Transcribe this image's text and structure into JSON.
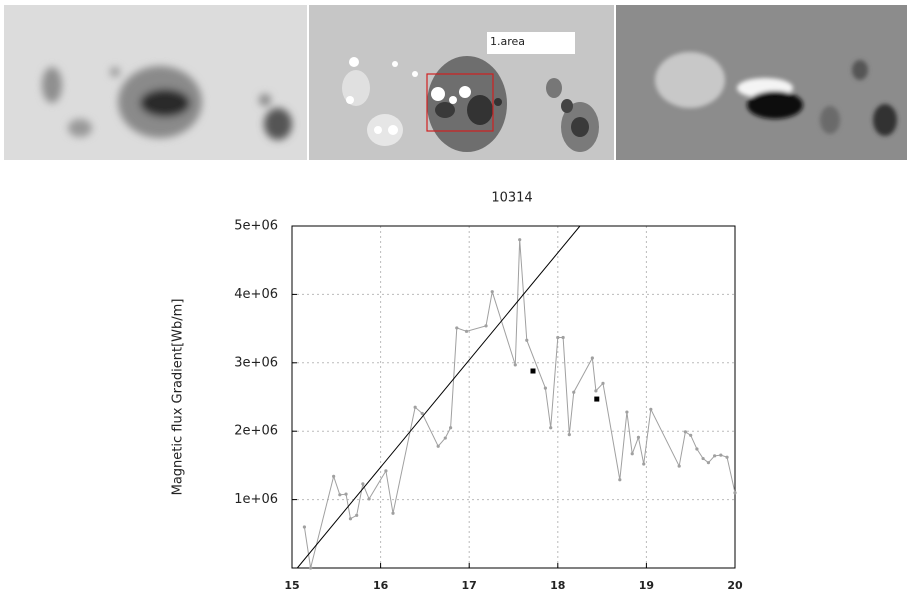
{
  "images": {
    "area_label": "1.area"
  },
  "chart_data": {
    "type": "line",
    "title": "10314",
    "ylabel": "Magnetic flux Gradient[Wb/m]",
    "xlim": [
      15,
      20
    ],
    "xticks": [
      15,
      16,
      17,
      18,
      19,
      20
    ],
    "ylim": [
      0,
      5000000
    ],
    "yticks": [
      {
        "value": 1000000,
        "label": "1e+06"
      },
      {
        "value": 2000000,
        "label": "2e+06"
      },
      {
        "value": 3000000,
        "label": "3e+06"
      },
      {
        "value": 4000000,
        "label": "4e+06"
      },
      {
        "value": 5000000,
        "label": "5e+06"
      }
    ],
    "grid": true,
    "series": [
      {
        "color": "#a0a0a0",
        "style": "line-points",
        "x": [
          15.14,
          15.21,
          15.47,
          15.54,
          15.61,
          15.66,
          15.73,
          15.8,
          15.87,
          16.06,
          16.14,
          16.39,
          16.47,
          16.65,
          16.73,
          16.79,
          16.86,
          16.97,
          17.19,
          17.26,
          17.52,
          17.57,
          17.65,
          17.86,
          17.92,
          18.0,
          18.06,
          18.13,
          18.18,
          18.39,
          18.43,
          18.51,
          18.7,
          18.78,
          18.84,
          18.91,
          18.97,
          19.05,
          19.37,
          19.44,
          19.5,
          19.57,
          19.64,
          19.7,
          19.77,
          19.84,
          19.91,
          20.0
        ],
        "values": [
          600000,
          0,
          1340000,
          1070000,
          1080000,
          720000,
          770000,
          1230000,
          1010000,
          1420000,
          800000,
          2350000,
          2260000,
          1780000,
          1900000,
          2050000,
          3510000,
          3460000,
          3540000,
          4040000,
          2970000,
          4800000,
          3330000,
          2630000,
          2050000,
          3370000,
          3370000,
          1950000,
          2570000,
          3070000,
          2590000,
          2700000,
          1290000,
          2280000,
          1670000,
          1910000,
          1520000,
          2320000,
          1490000,
          1990000,
          1940000,
          1740000,
          1600000,
          1540000,
          1640000,
          1650000,
          1620000,
          1100000
        ]
      },
      {
        "color": "#000000",
        "style": "line",
        "x": [
          15.06,
          18.25
        ],
        "values": [
          0,
          5000000
        ]
      },
      {
        "color": "#000000",
        "style": "squares",
        "x": [
          17.72,
          18.44
        ],
        "values": [
          2880000,
          2470000
        ]
      }
    ]
  }
}
